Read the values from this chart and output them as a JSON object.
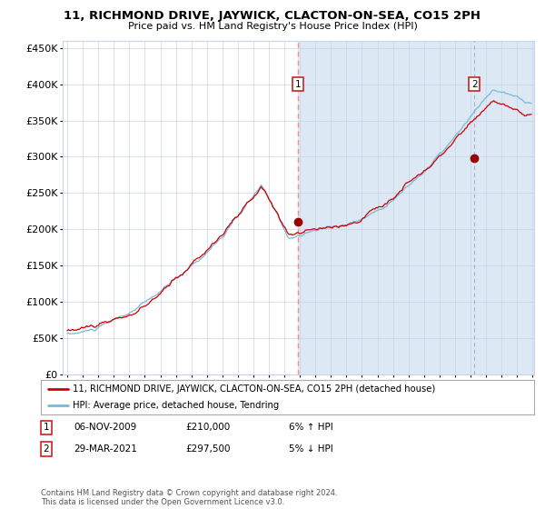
{
  "title": "11, RICHMOND DRIVE, JAYWICK, CLACTON-ON-SEA, CO15 2PH",
  "subtitle": "Price paid vs. HM Land Registry's House Price Index (HPI)",
  "background_color": "#ffffff",
  "plot_bg_color_left": "#ffffff",
  "plot_bg_color_right": "#dce9f5",
  "hpi_line_color": "#7ab8d9",
  "price_line_color": "#cc0000",
  "marker_color": "#990000",
  "vline1_color": "#ff8888",
  "vline2_color": "#aaaacc",
  "grid_color": "#c8d4e8",
  "y_ticks": [
    0,
    50000,
    100000,
    150000,
    200000,
    250000,
    300000,
    350000,
    400000,
    450000
  ],
  "y_tick_labels": [
    "£0",
    "£50K",
    "£100K",
    "£150K",
    "£200K",
    "£250K",
    "£300K",
    "£350K",
    "£400K",
    "£450K"
  ],
  "x_start_year": 1995,
  "x_end_year": 2025,
  "sale1_date": 2009.85,
  "sale1_price": 210000,
  "sale1_label": "1",
  "sale1_date_str": "06-NOV-2009",
  "sale1_pct": "6% ↑ HPI",
  "sale2_date": 2021.24,
  "sale2_price": 297500,
  "sale2_label": "2",
  "sale2_date_str": "29-MAR-2021",
  "sale2_pct": "5% ↓ HPI",
  "legend_line1": "11, RICHMOND DRIVE, JAYWICK, CLACTON-ON-SEA, CO15 2PH (detached house)",
  "legend_line2": "HPI: Average price, detached house, Tendring",
  "footer": "Contains HM Land Registry data © Crown copyright and database right 2024.\nThis data is licensed under the Open Government Licence v3.0.",
  "ylim": [
    0,
    460000
  ]
}
